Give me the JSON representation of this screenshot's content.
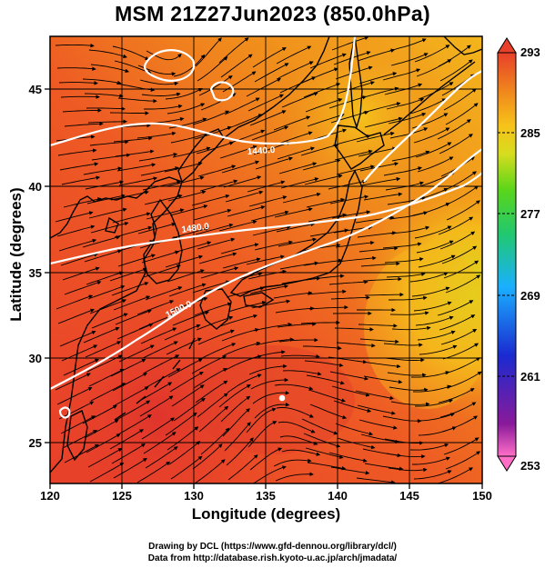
{
  "title": "MSM 21Z27Jun2023 (850.0hPa)",
  "xlabel": "Longitude (degrees)",
  "ylabel": "Latitude  (degrees)",
  "credits": [
    "Drawing by DCL (https://www.gfd-dennou.org/library/dcl/)",
    "Data from http://database.rish.kyoto-u.ac.jp/arch/jmadata/"
  ],
  "map": {
    "lon_range": [
      120,
      150
    ],
    "lat_range": [
      22.5,
      47.6
    ],
    "lon_ticks": [
      120,
      125,
      130,
      135,
      140,
      145,
      150
    ],
    "lat_ticks": [
      25,
      30,
      35,
      40,
      45
    ],
    "grid": true,
    "field": "temperature",
    "contour_labels": [
      "1440.0",
      "1480.0",
      "1500.0"
    ],
    "colors": {
      "hot": "#e8402a",
      "warm": "#f08a1c",
      "mild": "#f5c21a",
      "cool": "#d8dc1e"
    }
  },
  "colorbar": {
    "labels": [
      "293",
      "285",
      "277",
      "269",
      "261",
      "253"
    ],
    "min": 253,
    "max": 293,
    "colors": [
      "#ff6fc8",
      "#8a1a9a",
      "#1a2ad0",
      "#1ab0ff",
      "#21c870",
      "#5ad61a",
      "#d8dc1e",
      "#f7c21a",
      "#f08a1c",
      "#e8402a"
    ]
  }
}
